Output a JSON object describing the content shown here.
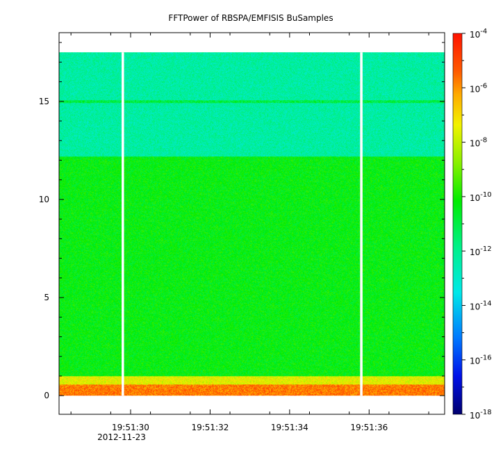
{
  "chart_data": {
    "type": "heatmap",
    "title": "FFTPower of RBSPA/EMFISIS  BuSamples",
    "xlabel": "",
    "ylabel": "",
    "x_tick_labels": [
      "19:51:30",
      "19:51:32",
      "19:51:34",
      "19:51:36"
    ],
    "x_tick_values_sec": [
      30,
      32,
      34,
      36
    ],
    "x_date_label": "2012-11-23",
    "x_range_sec": [
      28.2,
      37.9
    ],
    "y_ticks": [
      0,
      5,
      10,
      15
    ],
    "ylim": [
      -0.95,
      18.5
    ],
    "data_ymax": 17.5,
    "gap_times_sec": [
      29.8,
      35.8
    ],
    "z_scale": "log",
    "z_range": [
      1e-18,
      0.0001
    ],
    "colorbar_exponents": [
      -4,
      -6,
      -8,
      -10,
      -12,
      -14,
      -16,
      -18
    ],
    "colorbar_base": "10",
    "bands": [
      {
        "y_from": 0.0,
        "y_to": 0.6,
        "power": 2e-06
      },
      {
        "y_from": 0.6,
        "y_to": 1.0,
        "power": 3e-08
      },
      {
        "y_from": 1.0,
        "y_to": 12.2,
        "power": 5e-11
      },
      {
        "y_from": 12.2,
        "y_to": 17.5,
        "power": 5e-13
      }
    ],
    "line_feature": {
      "y": 15.0,
      "power": 1e-11
    },
    "grid": false
  }
}
